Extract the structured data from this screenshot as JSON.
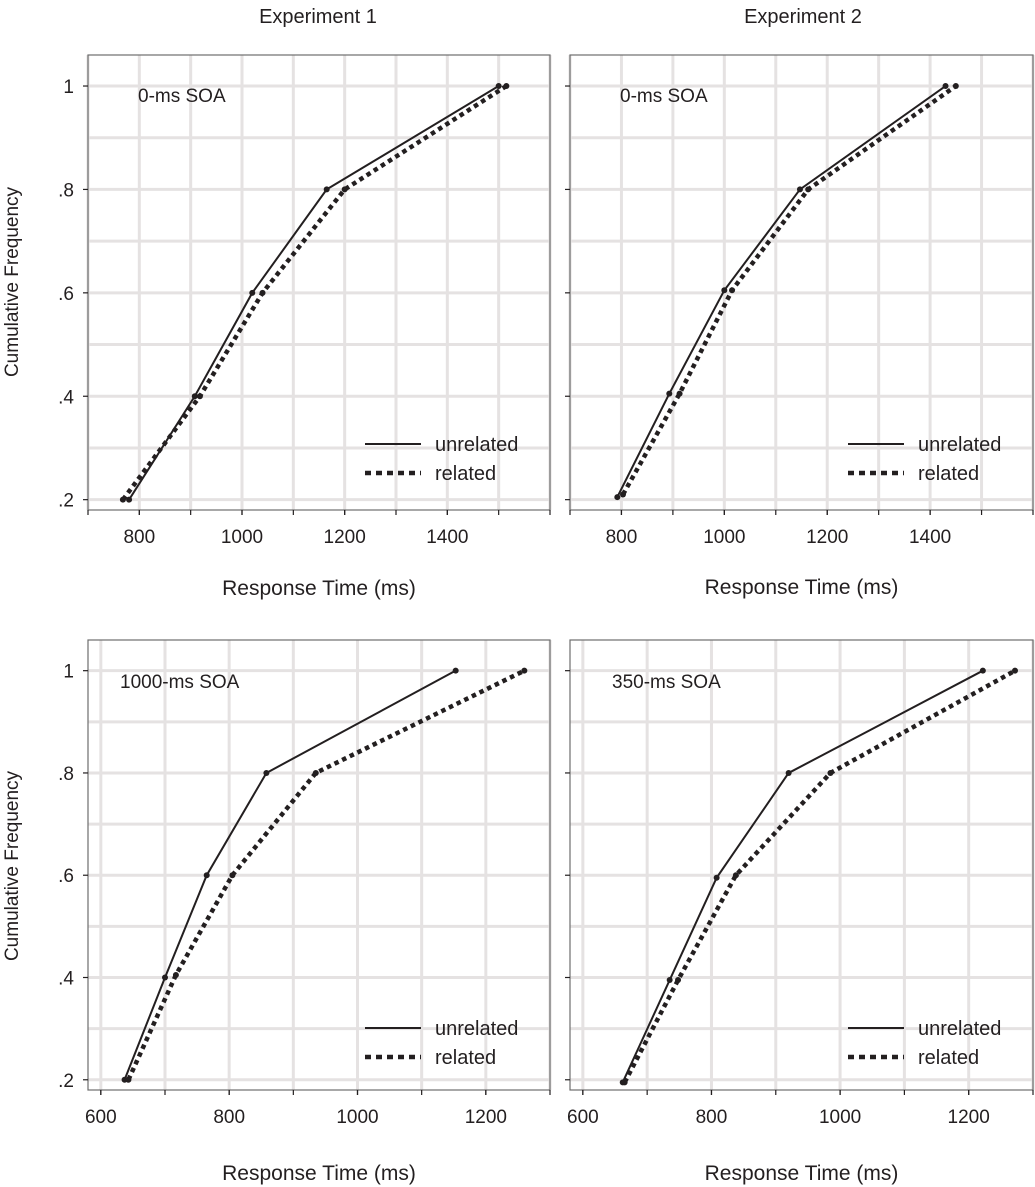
{
  "column_titles": [
    "Experiment 1",
    "Experiment 2"
  ],
  "ylabel": "Cumulative Frequency",
  "xlabel": "Response Time (ms)",
  "legend": [
    "unrelated",
    "related"
  ],
  "chart_data": [
    {
      "type": "line",
      "panel": "Experiment 1, top",
      "label": "0-ms SOA",
      "xlabel": "Response Time (ms)",
      "ylabel": "Cumulative Frequency",
      "xlim": [
        700,
        1600
      ],
      "ylim": [
        0.18,
        1.06
      ],
      "xticks": [
        800,
        1000,
        1200,
        1400
      ],
      "xtick_labels": [
        "800",
        "1000",
        "1200",
        "1400"
      ],
      "yticks": [
        0.2,
        0.4,
        0.6,
        0.8,
        1.0
      ],
      "ytick_labels": [
        ".2",
        ".4",
        ".6",
        ".8",
        "1"
      ],
      "grid": true,
      "legend_position": "bottom-right",
      "series": [
        {
          "name": "unrelated",
          "style": "solid",
          "x": [
            780,
            908,
            1020,
            1165,
            1500
          ],
          "y": [
            0.2,
            0.4,
            0.6,
            0.8,
            1.0
          ]
        },
        {
          "name": "related",
          "style": "dotted",
          "x": [
            768,
            918,
            1040,
            1200,
            1515
          ],
          "y": [
            0.2,
            0.4,
            0.6,
            0.8,
            1.0
          ]
        }
      ]
    },
    {
      "type": "line",
      "panel": "Experiment 2, top",
      "label": "0-ms SOA",
      "xlabel": "Response Time (ms)",
      "ylabel": "",
      "xlim": [
        700,
        1600
      ],
      "ylim": [
        0.18,
        1.06
      ],
      "xticks": [
        800,
        1000,
        1200,
        1400
      ],
      "xtick_labels": [
        "800",
        "1000",
        "1200",
        "1400"
      ],
      "yticks": [
        0.2,
        0.4,
        0.6,
        0.8,
        1.0
      ],
      "ytick_labels": [],
      "grid": true,
      "legend_position": "bottom-right",
      "series": [
        {
          "name": "unrelated",
          "style": "solid",
          "x": [
            792,
            893,
            1000,
            1147,
            1430
          ],
          "y": [
            0.205,
            0.405,
            0.605,
            0.8,
            1.0
          ]
        },
        {
          "name": "related",
          "style": "dotted",
          "x": [
            803,
            913,
            1015,
            1163,
            1450
          ],
          "y": [
            0.21,
            0.405,
            0.605,
            0.8,
            1.0
          ]
        }
      ]
    },
    {
      "type": "line",
      "panel": "Experiment 1, bottom",
      "label": "1000-ms SOA",
      "xlabel": "Response Time (ms)",
      "ylabel": "Cumulative Frequency",
      "xlim": [
        580,
        1300
      ],
      "ylim": [
        0.18,
        1.06
      ],
      "xticks": [
        600,
        800,
        1000,
        1200
      ],
      "xtick_labels": [
        "600",
        "800",
        "1000",
        "1200"
      ],
      "yticks": [
        0.2,
        0.4,
        0.6,
        0.8,
        1.0
      ],
      "ytick_labels": [
        ".2",
        ".4",
        ".6",
        ".8",
        "1"
      ],
      "grid": true,
      "legend_position": "bottom-right",
      "series": [
        {
          "name": "unrelated",
          "style": "solid",
          "x": [
            637,
            700,
            765,
            858,
            1153
          ],
          "y": [
            0.2,
            0.4,
            0.6,
            0.8,
            1.0
          ]
        },
        {
          "name": "related",
          "style": "dotted",
          "x": [
            643,
            717,
            805,
            935,
            1260
          ],
          "y": [
            0.2,
            0.405,
            0.6,
            0.8,
            1.0
          ]
        }
      ]
    },
    {
      "type": "line",
      "panel": "Experiment 2, bottom",
      "label": "350-ms SOA",
      "xlabel": "Response Time (ms)",
      "ylabel": "",
      "xlim": [
        580,
        1300
      ],
      "ylim": [
        0.18,
        1.06
      ],
      "xticks": [
        600,
        800,
        1000,
        1200
      ],
      "xtick_labels": [
        "600",
        "800",
        "1000",
        "1200"
      ],
      "yticks": [
        0.2,
        0.4,
        0.6,
        0.8,
        1.0
      ],
      "ytick_labels": [],
      "grid": true,
      "legend_position": "bottom-right",
      "series": [
        {
          "name": "unrelated",
          "style": "solid",
          "x": [
            662,
            735,
            808,
            920,
            1222
          ],
          "y": [
            0.195,
            0.395,
            0.595,
            0.8,
            1.0
          ]
        },
        {
          "name": "related",
          "style": "dotted",
          "x": [
            665,
            748,
            838,
            985,
            1272
          ],
          "y": [
            0.195,
            0.395,
            0.6,
            0.8,
            1.0
          ]
        }
      ]
    }
  ]
}
